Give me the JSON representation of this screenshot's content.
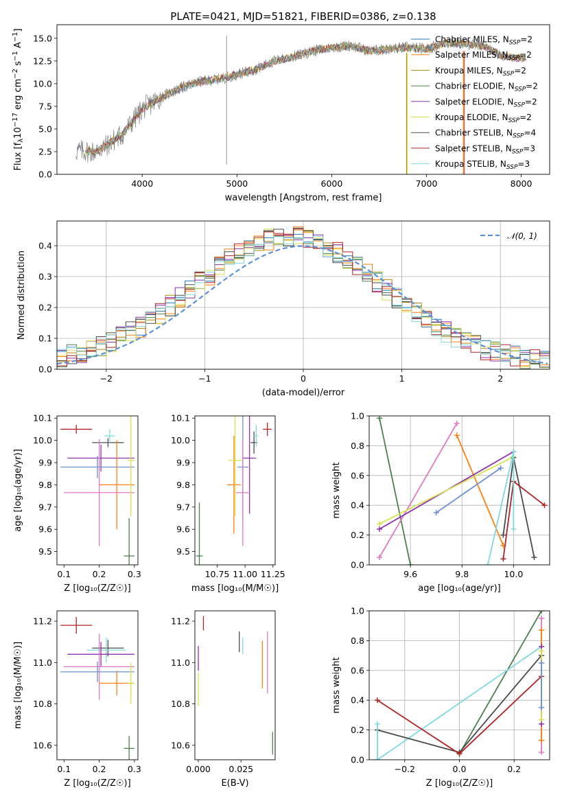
{
  "figure_title": "PLATE=0421, MJD=51821, FIBERID=0386, z=0.138",
  "legend": [
    {
      "name": "Chabrier MILES, N_SSP=2",
      "base": "Chabrier MILES, N",
      "sub": "SSP",
      "post": "=2",
      "color": "#1f77b4"
    },
    {
      "name": "Salpeter MILES, N_SSP=2",
      "base": "Salpeter MILES, N",
      "sub": "SSP",
      "post": "=2",
      "color": "#ff7f0e"
    },
    {
      "name": "Kroupa MILES, N_SSP=2",
      "base": "Kroupa MILES, N",
      "sub": "SSP",
      "post": "=2",
      "color": "#b8860b"
    },
    {
      "name": "Chabrier ELODIE, N_SSP=2",
      "base": "Chabrier ELODIE, N",
      "sub": "SSP",
      "post": "=2",
      "color": "#4a7f4a"
    },
    {
      "name": "Salpeter ELODIE, N_SSP=2",
      "base": "Salpeter ELODIE, N",
      "sub": "SSP",
      "post": "=2",
      "color": "#8e2fb0"
    },
    {
      "name": "Kroupa ELODIE, N_SSP=2",
      "base": "Kroupa ELODIE, N",
      "sub": "SSP",
      "post": "=2",
      "color": "#d8e04a"
    },
    {
      "name": "Chabrier STELIB, N_SSP=4",
      "base": "Chabrier STELIB, N",
      "sub": "SSP",
      "post": "=4",
      "color": "#4a4a4a"
    },
    {
      "name": "Salpeter STELIB, N_SSP=3",
      "base": "Salpeter STELIB, N",
      "sub": "SSP",
      "post": "=3",
      "color": "#b22222"
    },
    {
      "name": "Kroupa STELIB, N_SSP=3",
      "base": "Kroupa STELIB, N",
      "sub": "SSP",
      "post": "=3",
      "color": "#7fd8dc"
    }
  ],
  "colors": {
    "grey_spectrum": "#808080",
    "normal_curve": "#5b8fd9",
    "pink": "#e377c2",
    "blue": "#6a8fd8"
  },
  "chart_data": [
    {
      "type": "line",
      "id": "spectrum",
      "xlabel": "wavelength [Angstrom, rest frame]",
      "ylabel": "Flux [f_λ 10^-17 erg cm^-2 s^-1 A^-1]",
      "xlim": [
        3100,
        8300
      ],
      "ylim": [
        0,
        16.5
      ],
      "xticks": [
        4000,
        5000,
        6000,
        7000,
        8000
      ],
      "yticks": [
        0.0,
        2.5,
        5.0,
        7.5,
        10.0,
        12.5,
        15.0
      ],
      "ytick_labels": [
        "0.0",
        "2.5",
        "5.0",
        "7.5",
        "10.0",
        "12.5",
        "15.0"
      ],
      "spectrum_envelope": {
        "x": [
          3300,
          3500,
          3600,
          3800,
          4000,
          4200,
          4400,
          4600,
          4800,
          5000,
          5200,
          5400,
          5600,
          5800,
          6000,
          6200,
          6400,
          6600,
          6800,
          7000,
          7200,
          7400,
          7600,
          7800,
          8000,
          8050
        ],
        "y": [
          2.6,
          2.5,
          3.0,
          4.5,
          7.2,
          8.5,
          9.5,
          10.2,
          10.5,
          11.0,
          11.6,
          12.5,
          13.0,
          13.6,
          14.0,
          14.2,
          13.6,
          13.8,
          14.0,
          13.8,
          14.5,
          14.4,
          14.2,
          13.0,
          12.8,
          12.9
        ]
      },
      "grid": false
    },
    {
      "type": "line",
      "id": "residuals",
      "xlabel": "(data-model)/error",
      "ylabel": "Normed distribution",
      "xlim": [
        -2.5,
        2.5
      ],
      "ylim": [
        0,
        0.48
      ],
      "xticks": [
        -2,
        -1,
        0,
        1,
        2
      ],
      "xtick_labels": [
        "−2",
        "−1",
        "0",
        "1",
        "2"
      ],
      "yticks": [
        0.0,
        0.1,
        0.2,
        0.3,
        0.4
      ],
      "ytick_labels": [
        "0.0",
        "0.1",
        "0.2",
        "0.3",
        "0.4"
      ],
      "normal_label": "𝒩(0, 1)",
      "grid": true,
      "legend_position": "top-right"
    },
    {
      "type": "scatter",
      "id": "age_vs_Z",
      "xlabel": "Z [log₁₀(Z/Z☉)]",
      "ylabel": "age  [log₁₀(age/yr)]",
      "xlim": [
        0.08,
        0.31
      ],
      "ylim": [
        9.44,
        10.11
      ],
      "xticks": [
        0.1,
        0.2,
        0.3
      ],
      "xtick_labels": [
        "0.1",
        "0.2",
        "0.3"
      ],
      "yticks": [
        9.5,
        9.6,
        9.7,
        9.8,
        9.9,
        10.0,
        10.1
      ],
      "ytick_labels": [
        "9.5",
        "9.6",
        "9.7",
        "9.8",
        "9.9",
        "10.0",
        "10.1"
      ],
      "points": [
        {
          "c": "#b22222",
          "x": 0.135,
          "xe": 0.045,
          "y": 10.05,
          "ye": 0.02
        },
        {
          "c": "#4a4a4a",
          "x": 0.225,
          "xe": 0.045,
          "y": 9.99,
          "ye": 0.02
        },
        {
          "c": "#7fd8dc",
          "x": 0.23,
          "xe": 0.015,
          "y": 10.02,
          "ye": 0.03
        },
        {
          "c": "#8e2fb0",
          "x": 0.205,
          "xe": 0.095,
          "y": 9.92,
          "ye": 0.06
        },
        {
          "c": "#6a8fd8",
          "x": 0.195,
          "xe": 0.105,
          "y": 9.88,
          "ye": 0.05
        },
        {
          "c": "#ff7f0e",
          "x": 0.25,
          "xe": 0.05,
          "y": 9.8,
          "ye": 0.2
        },
        {
          "c": "#e377c2",
          "x": 0.2,
          "xe": 0.1,
          "y": 9.765,
          "ye": 0.24
        },
        {
          "c": "#d8e04a",
          "x": 0.29,
          "xe": 0.01,
          "y": 9.91,
          "ye": 0.25
        },
        {
          "c": "#4a7f4a",
          "x": 0.285,
          "xe": 0.015,
          "y": 9.48,
          "ye": 0.17
        }
      ]
    },
    {
      "type": "scatter",
      "id": "age_vs_mass",
      "xlabel": "mass [log₁₀(M/M☉)]",
      "ylabel": "",
      "xlim": [
        10.55,
        11.27
      ],
      "ylim": [
        9.44,
        10.11
      ],
      "xticks": [
        10.75,
        11.0,
        11.25
      ],
      "xtick_labels": [
        "10.75",
        "11.00",
        "11.25"
      ],
      "yticks": [
        9.5,
        9.6,
        9.7,
        9.8,
        9.9,
        10.0,
        10.1
      ],
      "ytick_labels": [
        "9.5",
        "9.6",
        "9.7",
        "9.8",
        "9.9",
        "10.0",
        "10.1"
      ],
      "points": [
        {
          "c": "#b22222",
          "x": 11.2,
          "xe": 0.04,
          "y": 10.05,
          "ye": 0.03
        },
        {
          "c": "#4a4a4a",
          "x": 11.08,
          "xe": 0.03,
          "y": 9.99,
          "ye": 0.05
        },
        {
          "c": "#7fd8dc",
          "x": 11.1,
          "xe": 0.02,
          "y": 10.02,
          "ye": 0.05
        },
        {
          "c": "#8e2fb0",
          "x": 11.04,
          "xe": 0.06,
          "y": 9.92,
          "ye": 0.25
        },
        {
          "c": "#6a8fd8",
          "x": 10.98,
          "xe": 0.05,
          "y": 9.88,
          "ye": 0.25
        },
        {
          "c": "#ff7f0e",
          "x": 10.9,
          "xe": 0.06,
          "y": 9.8,
          "ye": 0.22
        },
        {
          "c": "#e377c2",
          "x": 10.98,
          "xe": 0.06,
          "y": 9.765,
          "ye": 0.24
        },
        {
          "c": "#d8e04a",
          "x": 10.91,
          "xe": 0.06,
          "y": 9.91,
          "ye": 0.25
        },
        {
          "c": "#4a7f4a",
          "x": 10.59,
          "xe": 0.03,
          "y": 9.48,
          "ye": 0.24
        }
      ]
    },
    {
      "type": "line",
      "id": "massweight_vs_age",
      "xlabel": "age  [log₁₀(age/yr)]",
      "ylabel": "mass weight",
      "xlim": [
        9.44,
        10.14
      ],
      "ylim": [
        0,
        1
      ],
      "xticks": [
        9.6,
        9.8,
        10.0
      ],
      "xtick_labels": [
        "9.6",
        "9.8",
        "10.0"
      ],
      "yticks": [
        0,
        0.2,
        0.4,
        0.6,
        0.8,
        1.0
      ],
      "ytick_labels": [
        "0.0",
        "0.2",
        "0.4",
        "0.6",
        "0.8",
        "1.0"
      ],
      "grid": true,
      "series": [
        {
          "c": "#4a7f4a",
          "x": [
            9.48,
            9.6
          ],
          "y": [
            0.985,
            0.0
          ]
        },
        {
          "c": "#e377c2",
          "x": [
            9.48,
            9.78
          ],
          "y": [
            0.05,
            0.95
          ]
        },
        {
          "c": "#ff7f0e",
          "x": [
            9.78,
            9.96
          ],
          "y": [
            0.87,
            0.13
          ]
        },
        {
          "c": "#8e2fb0",
          "x": [
            9.48,
            10.0
          ],
          "y": [
            0.24,
            0.76
          ]
        },
        {
          "c": "#d8e04a",
          "x": [
            9.48,
            10.0
          ],
          "y": [
            0.275,
            0.725
          ]
        },
        {
          "c": "#6a8fd8",
          "x": [
            9.7,
            9.95
          ],
          "y": [
            0.35,
            0.65
          ]
        },
        {
          "c": "#4a4a4a",
          "x": [
            9.96,
            10.0,
            10.08
          ],
          "y": [
            0.2,
            0.72,
            0.05
          ]
        },
        {
          "c": "#b22222",
          "x": [
            9.96,
            10.0,
            10.12
          ],
          "y": [
            0.04,
            0.56,
            0.4
          ]
        },
        {
          "c": "#7fd8dc",
          "x": [
            9.9,
            10.0,
            10.0
          ],
          "y": [
            0.0,
            0.76,
            0.24
          ]
        }
      ]
    },
    {
      "type": "scatter",
      "id": "mass_vs_Z",
      "xlabel": "Z [log₁₀(Z/Z☉)]",
      "ylabel": "mass [log₁₀(M/M☉)]",
      "xlim": [
        0.08,
        0.31
      ],
      "ylim": [
        10.53,
        11.25
      ],
      "xticks": [
        0.1,
        0.2,
        0.3
      ],
      "xtick_labels": [
        "0.1",
        "0.2",
        "0.3"
      ],
      "yticks": [
        10.6,
        10.8,
        11.0,
        11.2
      ],
      "ytick_labels": [
        "10.6",
        "10.8",
        "11.0",
        "11.2"
      ],
      "points": [
        {
          "c": "#b22222",
          "x": 0.135,
          "xe": 0.045,
          "y": 11.18,
          "ye": 0.04
        },
        {
          "c": "#4a4a4a",
          "x": 0.225,
          "xe": 0.045,
          "y": 11.07,
          "ye": 0.04
        },
        {
          "c": "#7fd8dc",
          "x": 0.22,
          "xe": 0.055,
          "y": 11.06,
          "ye": 0.06
        },
        {
          "c": "#8e2fb0",
          "x": 0.205,
          "xe": 0.095,
          "y": 11.04,
          "ye": 0.06
        },
        {
          "c": "#e377c2",
          "x": 0.2,
          "xe": 0.1,
          "y": 10.98,
          "ye": 0.16
        },
        {
          "c": "#6a8fd8",
          "x": 0.195,
          "xe": 0.105,
          "y": 10.955,
          "ye": 0.05
        },
        {
          "c": "#ff7f0e",
          "x": 0.25,
          "xe": 0.05,
          "y": 10.9,
          "ye": 0.06
        },
        {
          "c": "#d8e04a",
          "x": 0.29,
          "xe": 0.01,
          "y": 10.9,
          "ye": 0.1
        },
        {
          "c": "#4a7f4a",
          "x": 0.285,
          "xe": 0.015,
          "y": 10.585,
          "ye": 0.06
        }
      ]
    },
    {
      "type": "scatter",
      "id": "mass_vs_ebv",
      "xlabel": "E(B-V)",
      "ylabel": "",
      "xlim": [
        -0.002,
        0.045
      ],
      "ylim": [
        10.53,
        11.25
      ],
      "xticks": [
        0.0,
        0.025
      ],
      "xtick_labels": [
        "0.000",
        "0.025"
      ],
      "yticks": [
        10.6,
        10.8,
        11.0,
        11.2
      ],
      "ytick_labels": [
        "10.6",
        "10.8",
        "11.0",
        "11.2"
      ],
      "points": [
        {
          "c": "#b22222",
          "x": 0.003,
          "xe": 0,
          "y": 11.19,
          "ye": 0.035
        },
        {
          "c": "#4a4a4a",
          "x": 0.024,
          "xe": 0,
          "y": 11.1,
          "ye": 0.05
        },
        {
          "c": "#7fd8dc",
          "x": 0.026,
          "xe": 0,
          "y": 11.08,
          "ye": 0.04
        },
        {
          "c": "#8e2fb0",
          "x": 0.0,
          "xe": 0,
          "y": 11.02,
          "ye": 0.06
        },
        {
          "c": "#d8e04a",
          "x": 0.0,
          "xe": 0,
          "y": 10.87,
          "ye": 0.08
        },
        {
          "c": "#e377c2",
          "x": 0.0405,
          "xe": 0,
          "y": 11.0,
          "ye": 0.15
        },
        {
          "c": "#ff7f0e",
          "x": 0.0375,
          "xe": 0,
          "y": 10.99,
          "ye": 0.115
        },
        {
          "c": "#4a7f4a",
          "x": 0.0435,
          "xe": 0,
          "y": 10.61,
          "ye": 0.055
        }
      ]
    },
    {
      "type": "line",
      "id": "massweight_vs_Z",
      "xlabel": "Z [log₁₀(Z/Z☉)]",
      "ylabel": "mass weight",
      "xlim": [
        -0.33,
        0.33
      ],
      "ylim": [
        0,
        1
      ],
      "xticks": [
        -0.2,
        0.0,
        0.2
      ],
      "xtick_labels": [
        "−0.2",
        "0.0",
        "0.2"
      ],
      "yticks": [
        0,
        0.2,
        0.4,
        0.6,
        0.8,
        1.0
      ],
      "ytick_labels": [
        "0.0",
        "0.2",
        "0.4",
        "0.6",
        "0.8",
        "1.0"
      ],
      "grid": true,
      "series": [
        {
          "c": "#4a7f4a",
          "x": [
            0.0,
            0.3
          ],
          "y": [
            0.04,
            1.0
          ]
        },
        {
          "c": "#7fd8dc",
          "x": [
            -0.3,
            0.3
          ],
          "y": [
            0.0,
            0.76
          ]
        },
        {
          "c": "#4a4a4a",
          "x": [
            -0.3,
            0.0,
            0.3
          ],
          "y": [
            0.2,
            0.05,
            0.7
          ]
        },
        {
          "c": "#b22222",
          "x": [
            -0.3,
            0.0,
            0.3
          ],
          "y": [
            0.4,
            0.04,
            0.56
          ]
        },
        {
          "c": "#e377c2",
          "x": [
            0.3,
            0.3
          ],
          "y": [
            0.05,
            0.95
          ]
        },
        {
          "c": "#ff7f0e",
          "x": [
            0.3,
            0.3
          ],
          "y": [
            0.13,
            0.87
          ]
        },
        {
          "c": "#8e2fb0",
          "x": [
            0.3,
            0.3
          ],
          "y": [
            0.24,
            0.76
          ]
        },
        {
          "c": "#d8e04a",
          "x": [
            0.3,
            0.3
          ],
          "y": [
            0.27,
            0.73
          ]
        },
        {
          "c": "#6a8fd8",
          "x": [
            0.3,
            0.3
          ],
          "y": [
            0.35,
            0.65
          ]
        },
        {
          "c": "#7fd8dc",
          "x": [
            -0.3,
            -0.3
          ],
          "y": [
            0.0,
            0.24
          ]
        }
      ]
    }
  ]
}
